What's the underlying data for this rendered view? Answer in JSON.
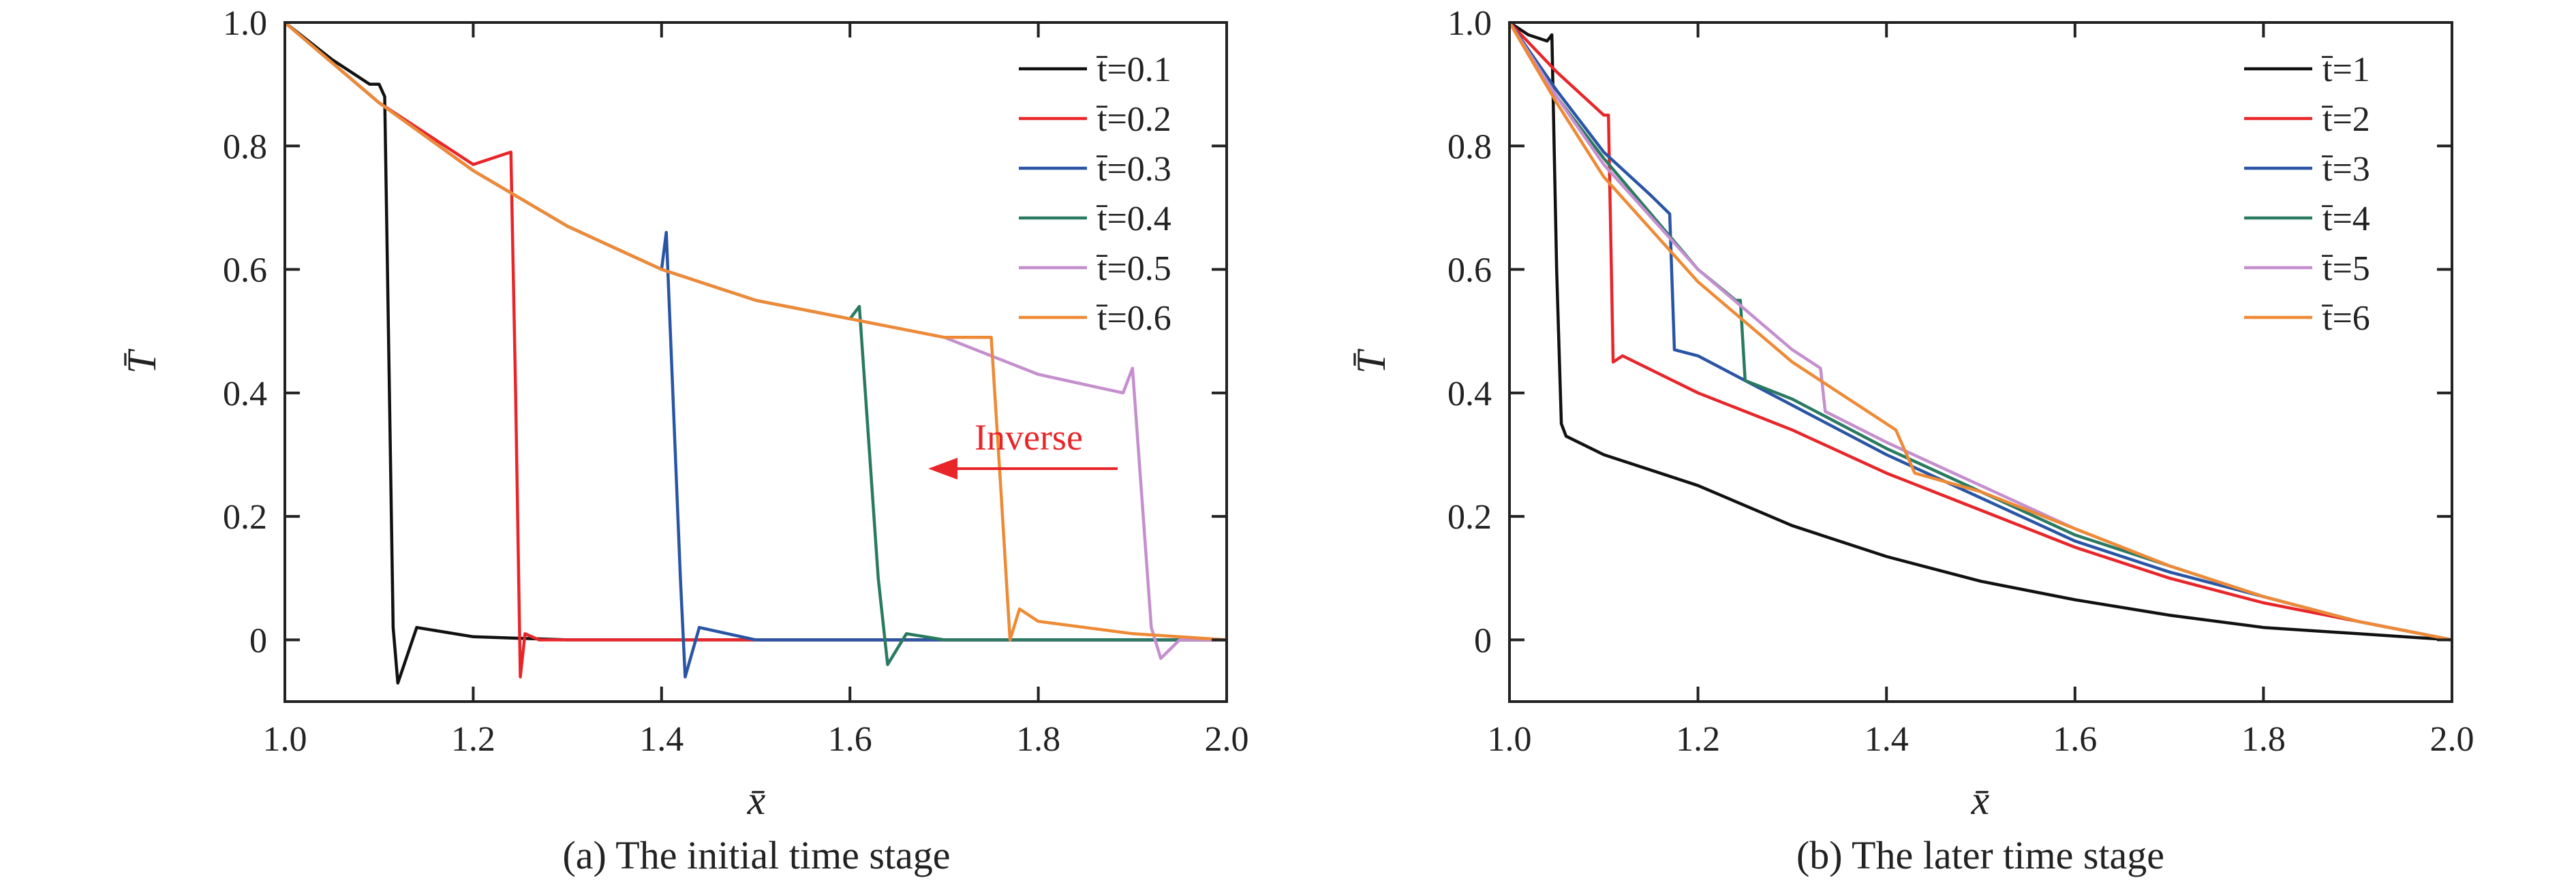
{
  "colors": {
    "s1": "#111111",
    "s2": "#e8262a",
    "s3": "#2a55a5",
    "s4": "#2a7a62",
    "s5": "#c58fce",
    "s6": "#ee8a35",
    "annotation": "#e8262a"
  },
  "chart_data": [
    {
      "type": "line",
      "caption": "(a) The initial time stage",
      "xlabel": "x̄",
      "ylabel": "T̄",
      "xlim": [
        1.0,
        2.0
      ],
      "ylim": [
        -0.1,
        1.0
      ],
      "xticks": [
        "1.0",
        "1.2",
        "1.4",
        "1.6",
        "1.8",
        "2.0"
      ],
      "yticks": [
        "0",
        "0.2",
        "0.4",
        "0.6",
        "0.8",
        "1.0"
      ],
      "grid": false,
      "legend_position": "top-right",
      "annotation": {
        "text": "Inverse",
        "arrow": "left"
      },
      "series": [
        {
          "name": "t̄=0.1",
          "color": "#111111",
          "x": [
            1.0,
            1.05,
            1.09,
            1.1,
            1.106,
            1.11,
            1.115,
            1.12,
            1.14,
            1.2,
            1.3,
            1.5,
            1.8,
            2.0
          ],
          "y": [
            1.0,
            0.94,
            0.9,
            0.9,
            0.88,
            0.5,
            0.02,
            -0.07,
            0.02,
            0.005,
            0.0,
            0.0,
            0.0,
            0.0
          ]
        },
        {
          "name": "t̄=0.2",
          "color": "#e8262a",
          "x": [
            1.0,
            1.1,
            1.2,
            1.24,
            1.245,
            1.25,
            1.255,
            1.27,
            1.3,
            1.5,
            1.8,
            2.0
          ],
          "y": [
            1.0,
            0.87,
            0.77,
            0.79,
            0.4,
            -0.06,
            0.01,
            0.0,
            0.0,
            0.0,
            0.0,
            0.0
          ]
        },
        {
          "name": "t̄=0.3",
          "color": "#2a55a5",
          "x": [
            1.0,
            1.1,
            1.2,
            1.3,
            1.4,
            1.405,
            1.42,
            1.425,
            1.44,
            1.5,
            1.8,
            2.0
          ],
          "y": [
            1.0,
            0.87,
            0.76,
            0.67,
            0.6,
            0.66,
            0.1,
            -0.06,
            0.02,
            0.0,
            0.0,
            0.0
          ]
        },
        {
          "name": "t̄=0.4",
          "color": "#2a7a62",
          "x": [
            1.0,
            1.1,
            1.2,
            1.3,
            1.4,
            1.5,
            1.6,
            1.61,
            1.63,
            1.64,
            1.66,
            1.7,
            2.0
          ],
          "y": [
            1.0,
            0.87,
            0.76,
            0.67,
            0.6,
            0.55,
            0.52,
            0.54,
            0.1,
            -0.04,
            0.01,
            0.0,
            0.0
          ]
        },
        {
          "name": "t̄=0.5",
          "color": "#c58fce",
          "x": [
            1.0,
            1.1,
            1.2,
            1.3,
            1.4,
            1.5,
            1.6,
            1.7,
            1.8,
            1.86,
            1.89,
            1.9,
            1.92,
            1.93,
            1.95,
            2.0
          ],
          "y": [
            1.0,
            0.87,
            0.76,
            0.67,
            0.6,
            0.55,
            0.52,
            0.49,
            0.43,
            0.41,
            0.4,
            0.44,
            0.02,
            -0.03,
            0.0,
            0.0
          ]
        },
        {
          "name": "t̄=0.6",
          "color": "#ee8a35",
          "x": [
            1.0,
            1.1,
            1.2,
            1.3,
            1.4,
            1.5,
            1.6,
            1.7,
            1.75,
            1.76,
            1.77,
            1.78,
            1.8,
            1.9,
            2.0
          ],
          "y": [
            1.0,
            0.87,
            0.76,
            0.67,
            0.6,
            0.55,
            0.52,
            0.49,
            0.49,
            0.25,
            0.0,
            0.05,
            0.03,
            0.01,
            0.0
          ]
        }
      ]
    },
    {
      "type": "line",
      "caption": "(b) The later time stage",
      "xlabel": "x̄",
      "ylabel": "T̄",
      "xlim": [
        1.0,
        2.0
      ],
      "ylim": [
        -0.1,
        1.0
      ],
      "xticks": [
        "1.0",
        "1.2",
        "1.4",
        "1.6",
        "1.8",
        "2.0"
      ],
      "yticks": [
        "0",
        "0.2",
        "0.4",
        "0.6",
        "0.8",
        "1.0"
      ],
      "grid": false,
      "legend_position": "top-right",
      "series": [
        {
          "name": "t̄=1",
          "color": "#111111",
          "x": [
            1.0,
            1.02,
            1.04,
            1.045,
            1.05,
            1.055,
            1.06,
            1.1,
            1.2,
            1.3,
            1.4,
            1.5,
            1.6,
            1.7,
            1.8,
            1.9,
            2.0
          ],
          "y": [
            1.0,
            0.98,
            0.97,
            0.98,
            0.6,
            0.35,
            0.33,
            0.3,
            0.25,
            0.185,
            0.135,
            0.095,
            0.065,
            0.04,
            0.02,
            0.01,
            0.0
          ]
        },
        {
          "name": "t̄=2",
          "color": "#e8262a",
          "x": [
            1.0,
            1.05,
            1.1,
            1.105,
            1.11,
            1.12,
            1.2,
            1.3,
            1.4,
            1.5,
            1.6,
            1.7,
            1.8,
            1.9,
            2.0
          ],
          "y": [
            1.0,
            0.92,
            0.85,
            0.85,
            0.45,
            0.46,
            0.4,
            0.34,
            0.27,
            0.21,
            0.15,
            0.1,
            0.06,
            0.03,
            0.0
          ]
        },
        {
          "name": "t̄=3",
          "color": "#2a55a5",
          "x": [
            1.0,
            1.05,
            1.1,
            1.15,
            1.17,
            1.175,
            1.2,
            1.3,
            1.4,
            1.5,
            1.6,
            1.7,
            1.8,
            1.9,
            2.0
          ],
          "y": [
            1.0,
            0.89,
            0.79,
            0.72,
            0.69,
            0.47,
            0.46,
            0.38,
            0.3,
            0.23,
            0.16,
            0.11,
            0.07,
            0.03,
            0.0
          ]
        },
        {
          "name": "t̄=4",
          "color": "#2a7a62",
          "x": [
            1.0,
            1.05,
            1.1,
            1.15,
            1.2,
            1.24,
            1.245,
            1.25,
            1.3,
            1.4,
            1.5,
            1.6,
            1.7,
            1.8,
            1.9,
            2.0
          ],
          "y": [
            1.0,
            0.88,
            0.78,
            0.69,
            0.6,
            0.55,
            0.55,
            0.42,
            0.39,
            0.31,
            0.24,
            0.17,
            0.12,
            0.07,
            0.03,
            0.0
          ]
        },
        {
          "name": "t̄=5",
          "color": "#c58fce",
          "x": [
            1.0,
            1.05,
            1.1,
            1.2,
            1.3,
            1.33,
            1.335,
            1.4,
            1.5,
            1.6,
            1.7,
            1.8,
            1.9,
            2.0
          ],
          "y": [
            1.0,
            0.88,
            0.77,
            0.6,
            0.47,
            0.44,
            0.37,
            0.32,
            0.25,
            0.18,
            0.12,
            0.07,
            0.03,
            0.0
          ]
        },
        {
          "name": "t̄=6",
          "color": "#ee8a35",
          "x": [
            1.0,
            1.05,
            1.1,
            1.2,
            1.3,
            1.4,
            1.41,
            1.43,
            1.5,
            1.6,
            1.7,
            1.8,
            1.9,
            2.0
          ],
          "y": [
            1.0,
            0.87,
            0.75,
            0.58,
            0.45,
            0.35,
            0.34,
            0.27,
            0.24,
            0.18,
            0.12,
            0.07,
            0.03,
            0.0
          ]
        }
      ]
    }
  ]
}
